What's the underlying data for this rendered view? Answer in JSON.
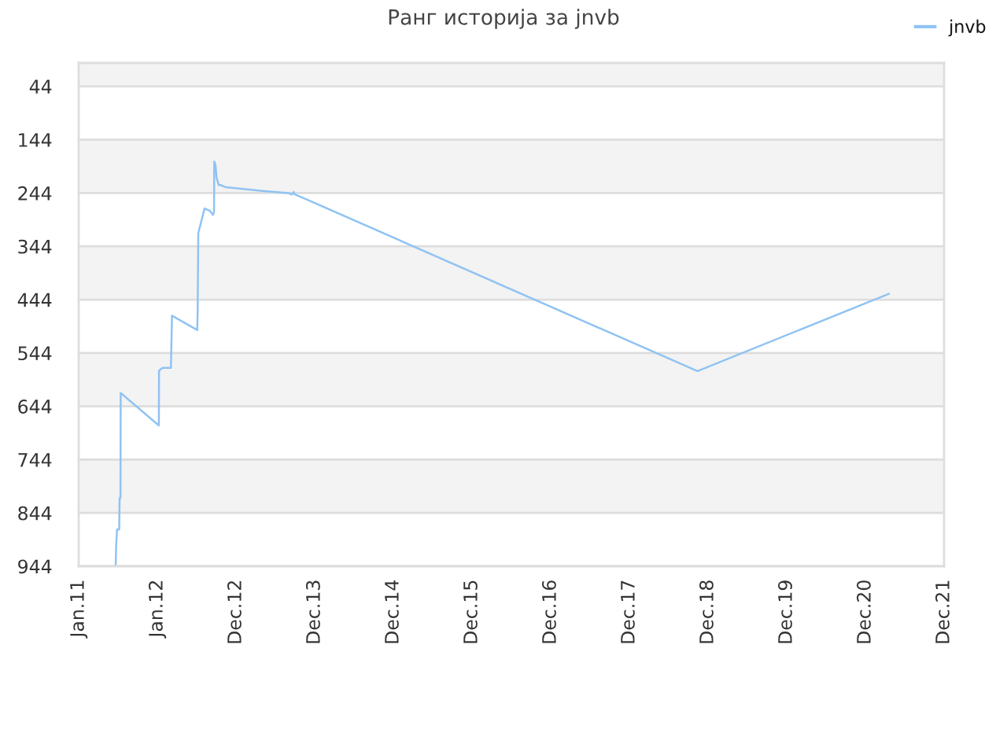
{
  "chart_data": {
    "type": "line",
    "title": "Ранг историја за jnvb",
    "x": [
      "2011-06-22",
      "2011-06-24",
      "2011-06-28",
      "2011-07-08",
      "2011-07-10",
      "2011-07-14",
      "2011-07-15",
      "2012-01-08",
      "2012-01-09",
      "2012-01-25",
      "2012-03-04",
      "2012-03-09",
      "2012-07-04",
      "2012-07-06",
      "2012-07-09",
      "2012-07-18",
      "2012-08-07",
      "2012-08-31",
      "2012-09-15",
      "2012-09-20",
      "2012-09-21",
      "2012-09-27",
      "2012-10-02",
      "2012-10-12",
      "2012-10-19",
      "2012-11-12",
      "2013-05-02",
      "2013-08-31",
      "2013-09-15",
      "2013-09-25",
      "2013-09-28",
      "2018-11-11",
      "2021-04-17"
    ],
    "series": [
      {
        "name": "jnvb",
        "color": "#90c3f3",
        "values": [
          940,
          905,
          875,
          875,
          816,
          816,
          619,
          680,
          577,
          572,
          572,
          474,
          501,
          467,
          319,
          305,
          273,
          277,
          285,
          280,
          185,
          192,
          216,
          229,
          229,
          233,
          240,
          244,
          247,
          242,
          246,
          578,
          433
        ]
      }
    ],
    "xlim": [
      "2011-01-01",
      "2021-12-29"
    ],
    "xticks": [
      {
        "value": "2011-01-01",
        "label": "Jan.11"
      },
      {
        "value": "2012-01-01",
        "label": "Jan.12"
      },
      {
        "value": "2012-12-31",
        "label": "Dec.12"
      },
      {
        "value": "2013-12-31",
        "label": "Dec.13"
      },
      {
        "value": "2014-12-31",
        "label": "Dec.14"
      },
      {
        "value": "2015-12-31",
        "label": "Dec.15"
      },
      {
        "value": "2016-12-30",
        "label": "Dec.16"
      },
      {
        "value": "2017-12-30",
        "label": "Dec.17"
      },
      {
        "value": "2018-12-30",
        "label": "Dec.18"
      },
      {
        "value": "2019-12-30",
        "label": "Dec.19"
      },
      {
        "value": "2020-12-29",
        "label": "Dec.20"
      },
      {
        "value": "2021-12-29",
        "label": "Dec.21"
      }
    ],
    "ylim": [
      944,
      0
    ],
    "yticks": [
      44,
      144,
      244,
      344,
      444,
      544,
      644,
      744,
      844,
      944
    ],
    "grid": "y",
    "legend": "top right",
    "marker": "none",
    "line_style": "solid"
  }
}
